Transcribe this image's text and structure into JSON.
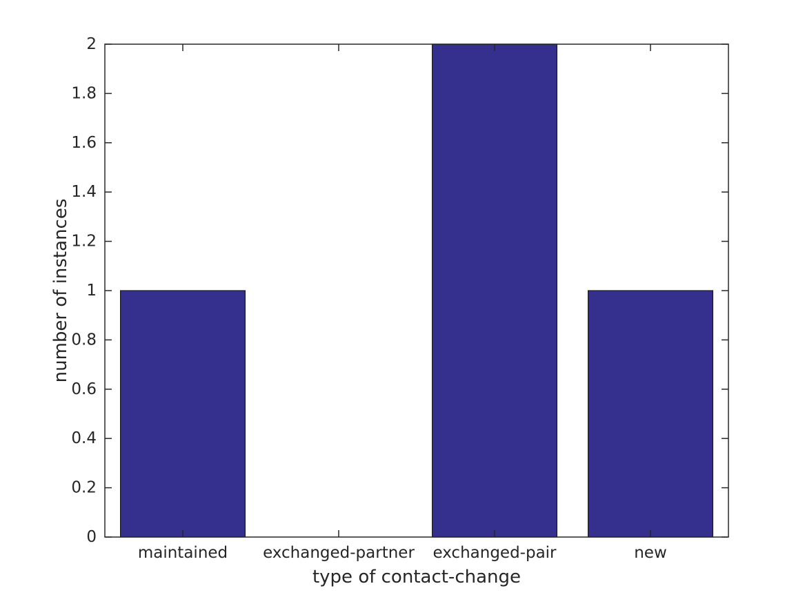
{
  "chart_data": {
    "type": "bar",
    "categories": [
      "maintained",
      "exchanged-partner",
      "exchanged-pair",
      "new"
    ],
    "values": [
      1,
      0,
      2,
      1
    ],
    "xlabel": "type of contact-change",
    "ylabel": "number of instances",
    "ylim": [
      0,
      2
    ],
    "yticks": [
      "0",
      "0.2",
      "0.4",
      "0.6",
      "0.8",
      "1",
      "1.2",
      "1.4",
      "1.6",
      "1.8",
      "2"
    ],
    "bar_width_fraction": 0.8,
    "grid": false,
    "legend": null,
    "colors": {
      "bar_fill": "#35308D",
      "bar_edge": "#1a1a1a",
      "axis": "#262626",
      "background": "#ffffff"
    }
  }
}
